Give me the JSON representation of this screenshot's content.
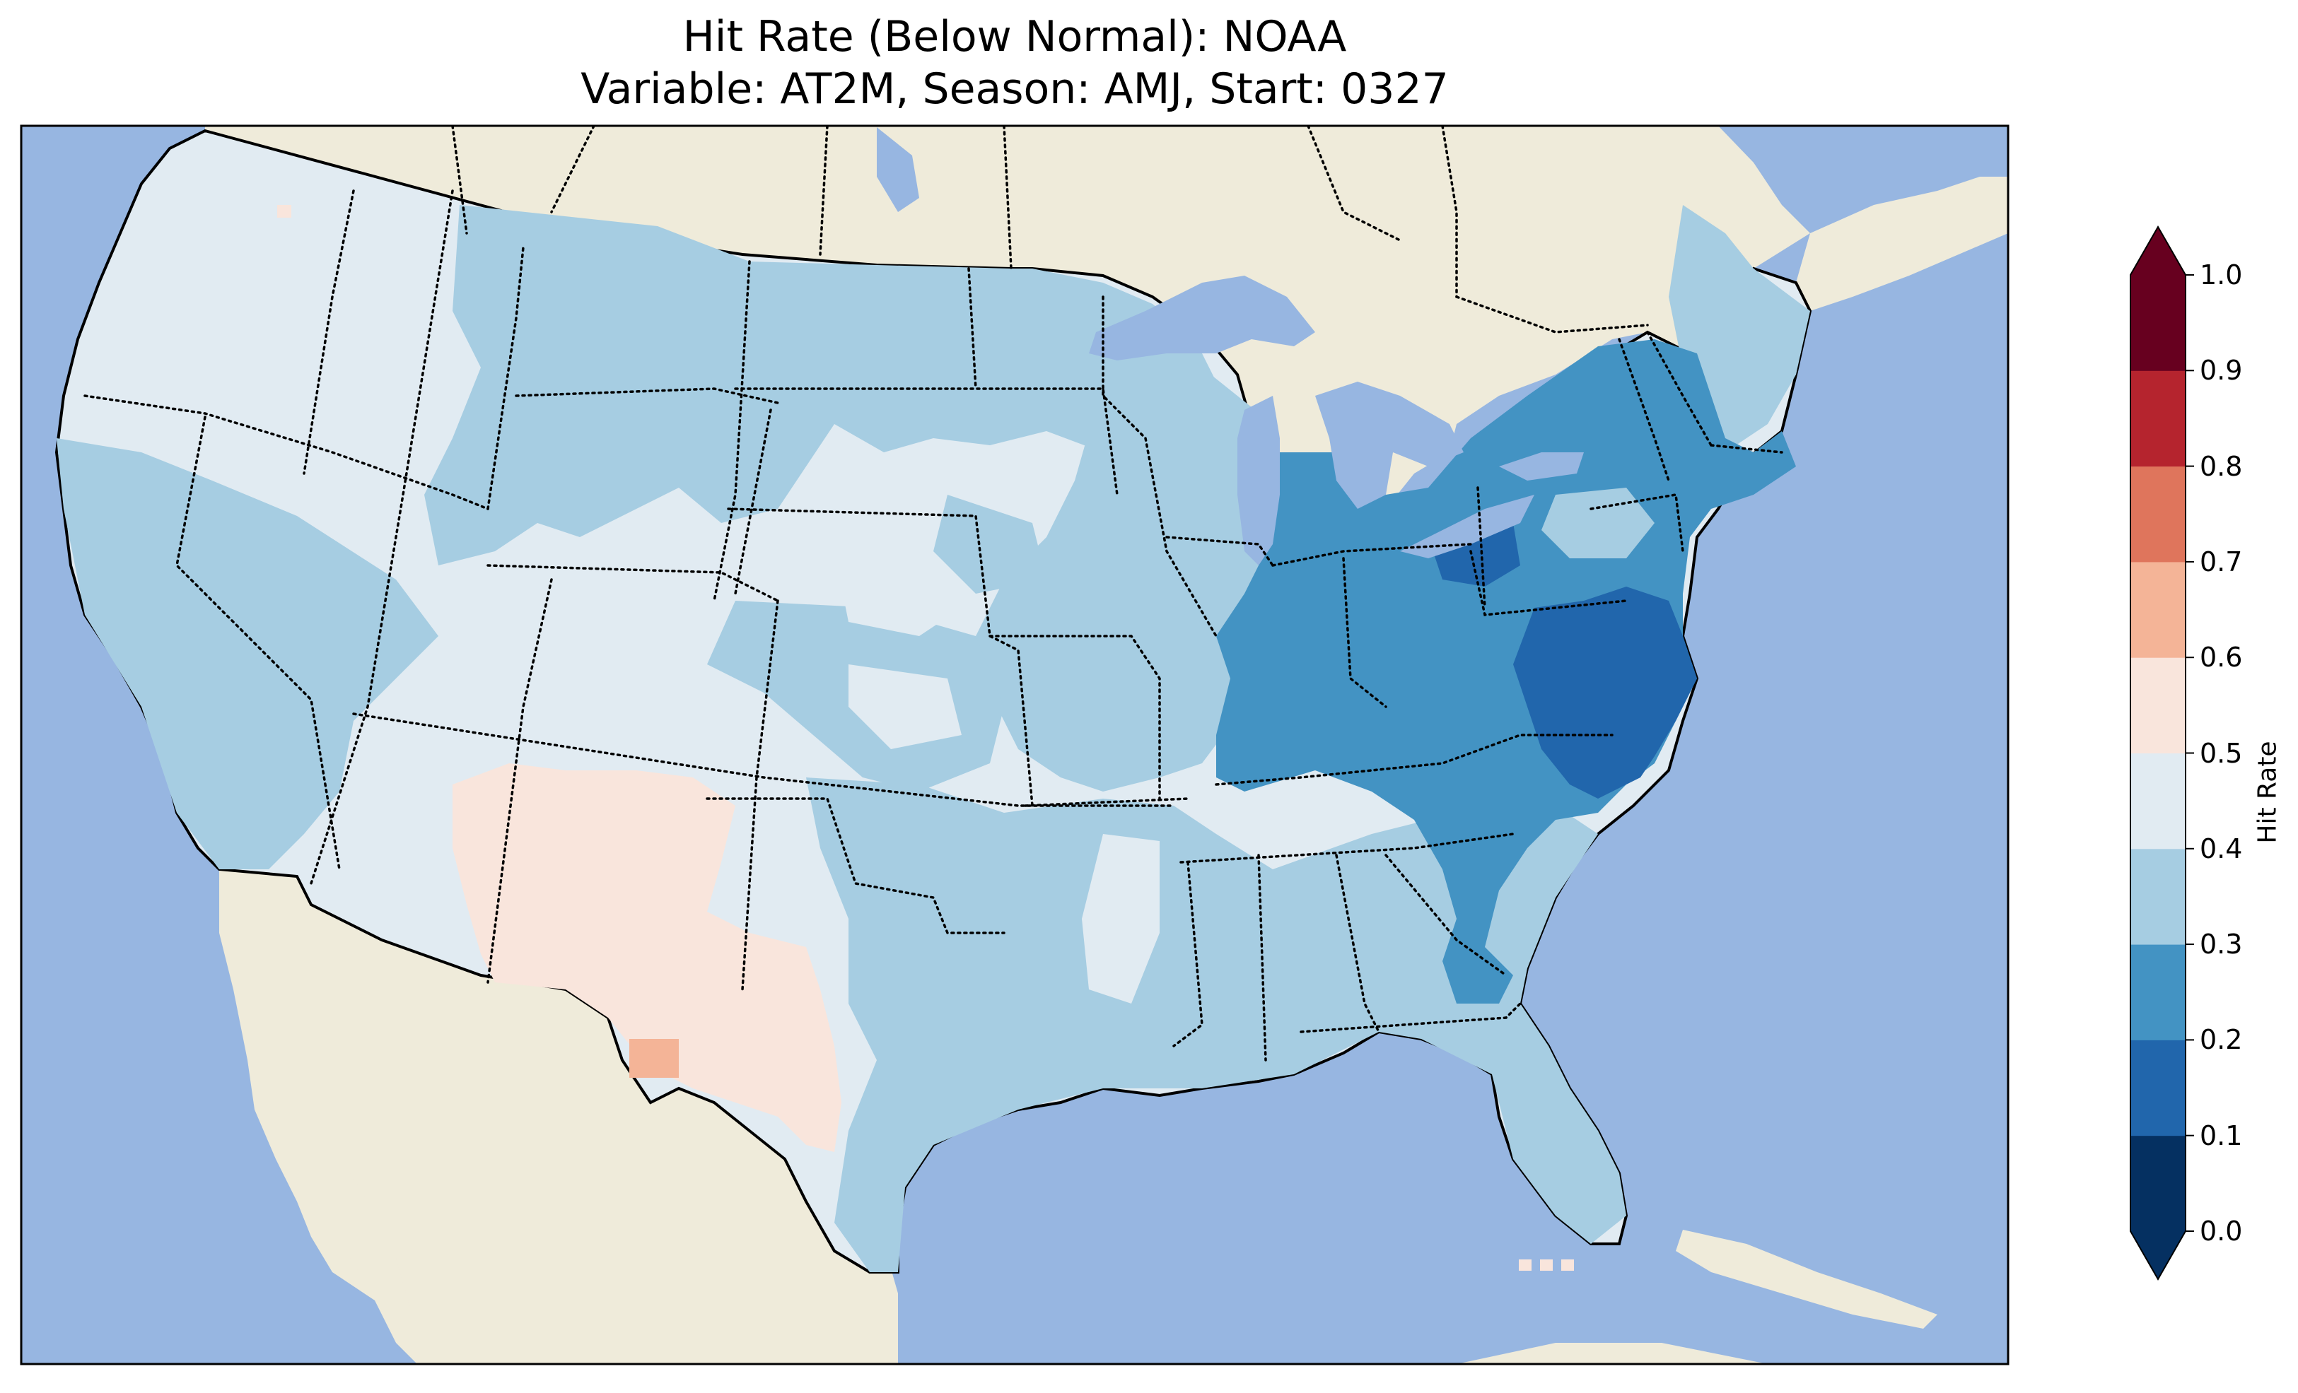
{
  "title_line1": "Hit Rate (Below Normal): NOAA",
  "title_line2": "Variable: AT2M, Season: AMJ, Start: 0327",
  "colorbar": {
    "label": "Hit Rate",
    "ticks": [
      "0.0",
      "0.1",
      "0.2",
      "0.3",
      "0.4",
      "0.5",
      "0.6",
      "0.7",
      "0.8",
      "0.9",
      "1.0"
    ],
    "bins": [
      {
        "range": [
          0.0,
          0.1
        ],
        "color": "#053061"
      },
      {
        "range": [
          0.1,
          0.2
        ],
        "color": "#2166ac"
      },
      {
        "range": [
          0.2,
          0.3
        ],
        "color": "#4393c3"
      },
      {
        "range": [
          0.3,
          0.4
        ],
        "color": "#a6cde2"
      },
      {
        "range": [
          0.4,
          0.5
        ],
        "color": "#e1ebf2"
      },
      {
        "range": [
          0.5,
          0.6
        ],
        "color": "#f9e5dc"
      },
      {
        "range": [
          0.6,
          0.7
        ],
        "color": "#f4b497"
      },
      {
        "range": [
          0.7,
          0.8
        ],
        "color": "#df755c"
      },
      {
        "range": [
          0.8,
          0.9
        ],
        "color": "#b5242e"
      },
      {
        "range": [
          0.9,
          1.0
        ],
        "color": "#67001f"
      }
    ],
    "extend": "both"
  },
  "map": {
    "region": "Contiguous United States",
    "ocean_color": "#97b6e1",
    "land_color": "#efebda",
    "state_borders": "dotted",
    "coastlines": "solid black",
    "fields": [
      {
        "region": "west-coast-and-northern-tier",
        "hit_rate_bin": "0.4-0.5"
      },
      {
        "region": "northern-rockies-and-plains",
        "hit_rate_bin": "0.3-0.4"
      },
      {
        "region": "new-mexico-and-west-texas",
        "hit_rate_bin": "0.5-0.6"
      },
      {
        "region": "southwest-texas-patch",
        "hit_rate_bin": "0.6-0.7"
      },
      {
        "region": "ohio-valley-and-mid-atlantic",
        "hit_rate_bin": "0.2-0.3"
      },
      {
        "region": "virginia-and-north-carolina-core",
        "hit_rate_bin": "0.1-0.2"
      },
      {
        "region": "southeast-and-gulf-coast",
        "hit_rate_bin": "0.3-0.4"
      },
      {
        "region": "georgia-patch",
        "hit_rate_bin": "0.2-0.3"
      }
    ]
  }
}
